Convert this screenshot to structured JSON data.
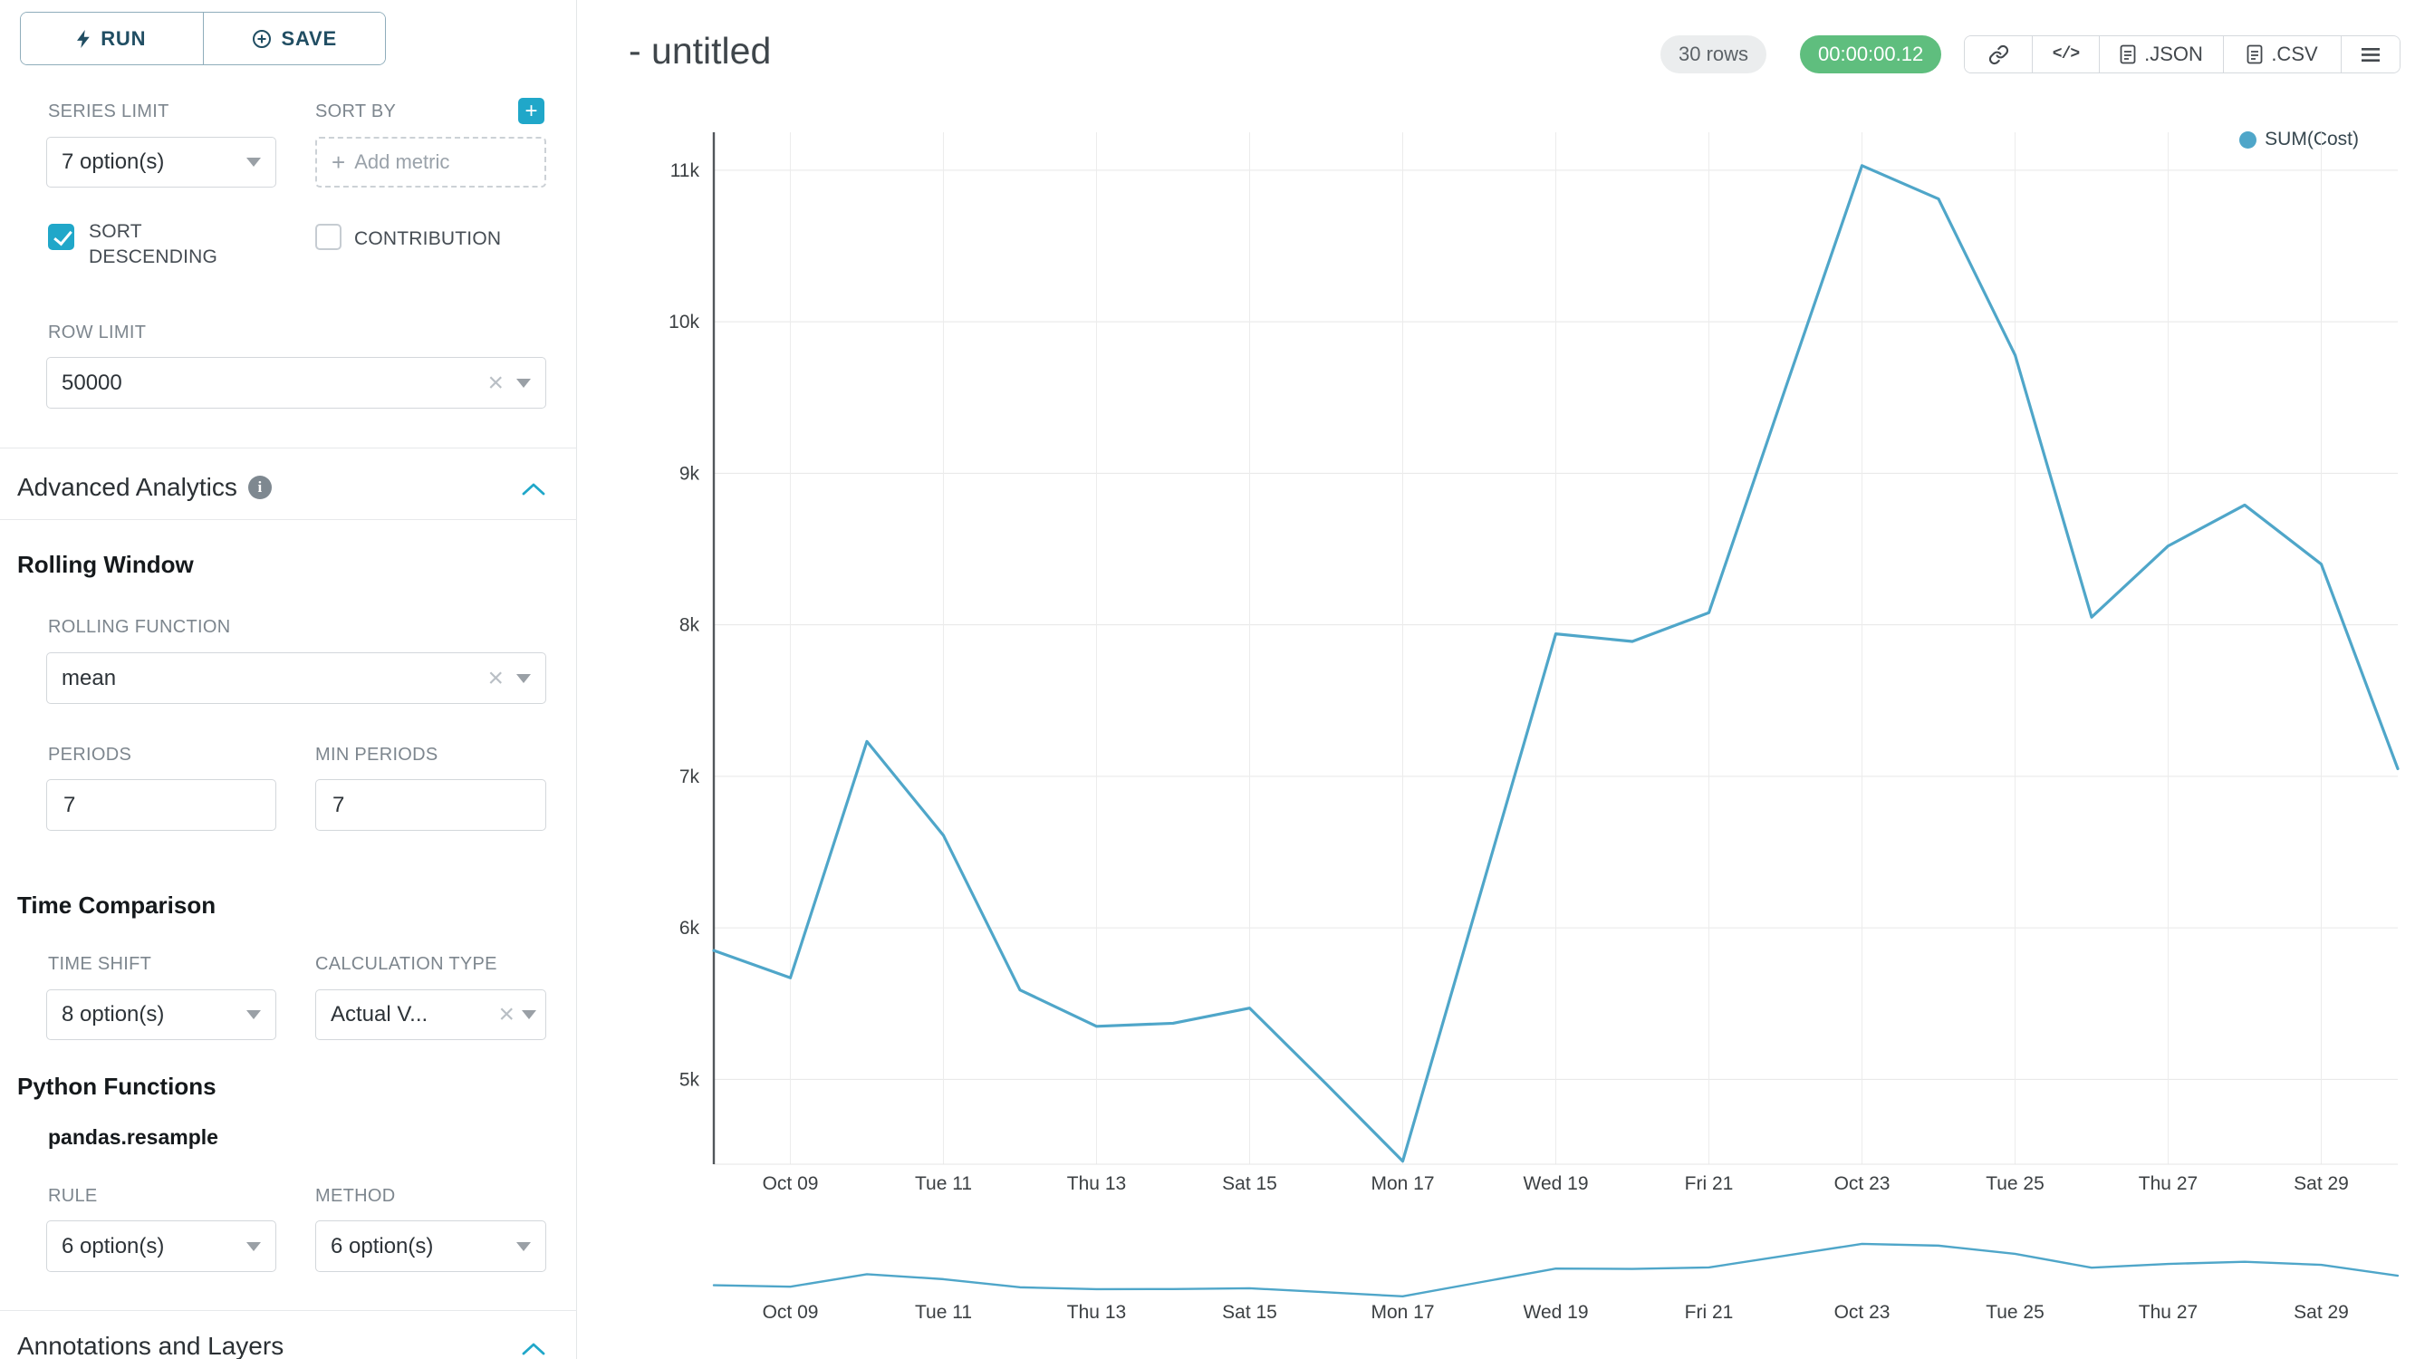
{
  "colors": {
    "accent": "#20a7c9",
    "timer_green": "#5fbe7e",
    "pill_gray": "#ebedee"
  },
  "sidebar": {
    "run_label": "RUN",
    "save_label": "SAVE",
    "series_limit": {
      "label": "SERIES LIMIT",
      "value": "7 option(s)"
    },
    "sort_by": {
      "label": "SORT BY",
      "placeholder": "Add metric"
    },
    "sort_descending": {
      "label": "SORT DESCENDING",
      "checked": true
    },
    "contribution": {
      "label": "CONTRIBUTION",
      "checked": false
    },
    "row_limit": {
      "label": "ROW LIMIT",
      "value": "50000"
    },
    "advanced_analytics_title": "Advanced Analytics",
    "rolling_window": {
      "title": "Rolling Window",
      "rolling_function": {
        "label": "ROLLING FUNCTION",
        "value": "mean"
      },
      "periods": {
        "label": "PERIODS",
        "value": "7"
      },
      "min_periods": {
        "label": "MIN PERIODS",
        "value": "7"
      }
    },
    "time_comparison": {
      "title": "Time Comparison",
      "time_shift": {
        "label": "TIME SHIFT",
        "value": "8 option(s)"
      },
      "calculation_type": {
        "label": "CALCULATION TYPE",
        "value": "Actual V..."
      }
    },
    "python_functions": {
      "title": "Python Functions",
      "subtitle": "pandas.resample",
      "rule": {
        "label": "RULE",
        "value": "6 option(s)"
      },
      "method": {
        "label": "METHOD",
        "value": "6 option(s)"
      }
    },
    "annotations_title": "Annotations and Layers"
  },
  "header": {
    "title": "- untitled",
    "rows_badge": "30 rows",
    "timer": "00:00:00.12",
    "embed_icon_glyph": "</>",
    "json_label": ".JSON",
    "csv_label": ".CSV"
  },
  "legend": {
    "label": "SUM(Cost)"
  },
  "chart_data": {
    "type": "line",
    "title": "- untitled",
    "line_color": "#4FA6C9",
    "grid": true,
    "legend_position": "top-right",
    "x": [
      "Oct 08",
      "Oct 09",
      "Oct 10",
      "Oct 11",
      "Oct 12",
      "Oct 13",
      "Oct 14",
      "Oct 15",
      "Oct 16",
      "Oct 17",
      "Oct 18",
      "Oct 19",
      "Oct 20",
      "Oct 21",
      "Oct 22",
      "Oct 23",
      "Oct 24",
      "Oct 25",
      "Oct 26",
      "Oct 27",
      "Oct 28",
      "Oct 29",
      "Oct 30"
    ],
    "series": [
      {
        "name": "SUM(Cost)",
        "values": [
          5850,
          5670,
          7230,
          6610,
          5590,
          5350,
          5370,
          5470,
          4970,
          4460,
          6200,
          7940,
          7890,
          8080,
          9560,
          11030,
          10810,
          9780,
          8050,
          8520,
          8790,
          8400,
          7050
        ]
      }
    ],
    "x_tick_indices": [
      1,
      3,
      5,
      7,
      9,
      11,
      13,
      15,
      17,
      19,
      21
    ],
    "x_tick_labels": [
      "Oct 09",
      "Tue 11",
      "Thu 13",
      "Sat 15",
      "Mon 17",
      "Wed 19",
      "Fri 21",
      "Oct 23",
      "Tue 25",
      "Thu 27",
      "Sat 29"
    ],
    "y_ticks": [
      {
        "label": "11k",
        "value": 11000
      },
      {
        "label": "10k",
        "value": 10000
      },
      {
        "label": "9k",
        "value": 9000
      },
      {
        "label": "8k",
        "value": 8000
      },
      {
        "label": "7k",
        "value": 7000
      },
      {
        "label": "6k",
        "value": 6000
      },
      {
        "label": "5k",
        "value": 5000
      }
    ],
    "ylim": [
      4440,
      11250
    ],
    "has_mini_preview": true
  }
}
